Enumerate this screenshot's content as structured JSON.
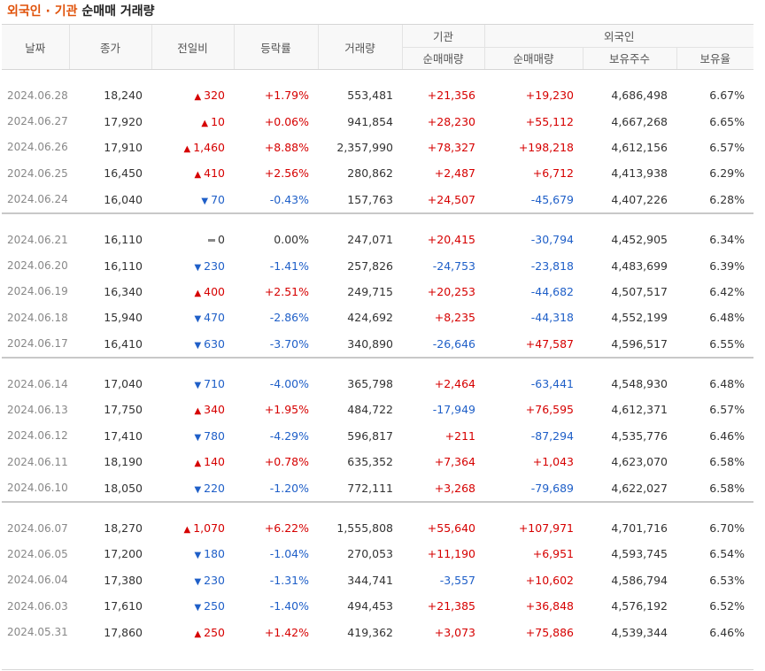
{
  "title": {
    "accent": "외국인 · 기관",
    "rest": " 순매매 거래량"
  },
  "headers": {
    "date": "날짜",
    "close": "종가",
    "change": "전일비",
    "rate": "등락률",
    "volume": "거래량",
    "institution": "기관",
    "foreign": "외국인",
    "inst_net": "순매매량",
    "foreign_net": "순매매량",
    "holdings": "보유주수",
    "ratio": "보유율"
  },
  "colors": {
    "up": "#d60000",
    "down": "#1f5fc8",
    "accent": "#e0520a"
  },
  "groups": [
    [
      {
        "date": "2024.06.28",
        "close": "18,240",
        "dir": "up",
        "change": "320",
        "rate": "+1.79%",
        "volume": "553,481",
        "inst": "+21,356",
        "foreign": "+19,230",
        "holdings": "4,686,498",
        "ratio": "6.67%"
      },
      {
        "date": "2024.06.27",
        "close": "17,920",
        "dir": "up",
        "change": "10",
        "rate": "+0.06%",
        "volume": "941,854",
        "inst": "+28,230",
        "foreign": "+55,112",
        "holdings": "4,667,268",
        "ratio": "6.65%"
      },
      {
        "date": "2024.06.26",
        "close": "17,910",
        "dir": "up",
        "change": "1,460",
        "rate": "+8.88%",
        "volume": "2,357,990",
        "inst": "+78,327",
        "foreign": "+198,218",
        "holdings": "4,612,156",
        "ratio": "6.57%"
      },
      {
        "date": "2024.06.25",
        "close": "16,450",
        "dir": "up",
        "change": "410",
        "rate": "+2.56%",
        "volume": "280,862",
        "inst": "+2,487",
        "foreign": "+6,712",
        "holdings": "4,413,938",
        "ratio": "6.29%"
      },
      {
        "date": "2024.06.24",
        "close": "16,040",
        "dir": "down",
        "change": "70",
        "rate": "-0.43%",
        "volume": "157,763",
        "inst": "+24,507",
        "foreign": "-45,679",
        "holdings": "4,407,226",
        "ratio": "6.28%"
      }
    ],
    [
      {
        "date": "2024.06.21",
        "close": "16,110",
        "dir": "flat",
        "change": "0",
        "rate": "0.00%",
        "volume": "247,071",
        "inst": "+20,415",
        "foreign": "-30,794",
        "holdings": "4,452,905",
        "ratio": "6.34%"
      },
      {
        "date": "2024.06.20",
        "close": "16,110",
        "dir": "down",
        "change": "230",
        "rate": "-1.41%",
        "volume": "257,826",
        "inst": "-24,753",
        "foreign": "-23,818",
        "holdings": "4,483,699",
        "ratio": "6.39%"
      },
      {
        "date": "2024.06.19",
        "close": "16,340",
        "dir": "up",
        "change": "400",
        "rate": "+2.51%",
        "volume": "249,715",
        "inst": "+20,253",
        "foreign": "-44,682",
        "holdings": "4,507,517",
        "ratio": "6.42%"
      },
      {
        "date": "2024.06.18",
        "close": "15,940",
        "dir": "down",
        "change": "470",
        "rate": "-2.86%",
        "volume": "424,692",
        "inst": "+8,235",
        "foreign": "-44,318",
        "holdings": "4,552,199",
        "ratio": "6.48%"
      },
      {
        "date": "2024.06.17",
        "close": "16,410",
        "dir": "down",
        "change": "630",
        "rate": "-3.70%",
        "volume": "340,890",
        "inst": "-26,646",
        "foreign": "+47,587",
        "holdings": "4,596,517",
        "ratio": "6.55%"
      }
    ],
    [
      {
        "date": "2024.06.14",
        "close": "17,040",
        "dir": "down",
        "change": "710",
        "rate": "-4.00%",
        "volume": "365,798",
        "inst": "+2,464",
        "foreign": "-63,441",
        "holdings": "4,548,930",
        "ratio": "6.48%"
      },
      {
        "date": "2024.06.13",
        "close": "17,750",
        "dir": "up",
        "change": "340",
        "rate": "+1.95%",
        "volume": "484,722",
        "inst": "-17,949",
        "foreign": "+76,595",
        "holdings": "4,612,371",
        "ratio": "6.57%"
      },
      {
        "date": "2024.06.12",
        "close": "17,410",
        "dir": "down",
        "change": "780",
        "rate": "-4.29%",
        "volume": "596,817",
        "inst": "+211",
        "foreign": "-87,294",
        "holdings": "4,535,776",
        "ratio": "6.46%"
      },
      {
        "date": "2024.06.11",
        "close": "18,190",
        "dir": "up",
        "change": "140",
        "rate": "+0.78%",
        "volume": "635,352",
        "inst": "+7,364",
        "foreign": "+1,043",
        "holdings": "4,623,070",
        "ratio": "6.58%"
      },
      {
        "date": "2024.06.10",
        "close": "18,050",
        "dir": "down",
        "change": "220",
        "rate": "-1.20%",
        "volume": "772,111",
        "inst": "+3,268",
        "foreign": "-79,689",
        "holdings": "4,622,027",
        "ratio": "6.58%"
      }
    ],
    [
      {
        "date": "2024.06.07",
        "close": "18,270",
        "dir": "up",
        "change": "1,070",
        "rate": "+6.22%",
        "volume": "1,555,808",
        "inst": "+55,640",
        "foreign": "+107,971",
        "holdings": "4,701,716",
        "ratio": "6.70%"
      },
      {
        "date": "2024.06.05",
        "close": "17,200",
        "dir": "down",
        "change": "180",
        "rate": "-1.04%",
        "volume": "270,053",
        "inst": "+11,190",
        "foreign": "+6,951",
        "holdings": "4,593,745",
        "ratio": "6.54%"
      },
      {
        "date": "2024.06.04",
        "close": "17,380",
        "dir": "down",
        "change": "230",
        "rate": "-1.31%",
        "volume": "344,741",
        "inst": "-3,557",
        "foreign": "+10,602",
        "holdings": "4,586,794",
        "ratio": "6.53%"
      },
      {
        "date": "2024.06.03",
        "close": "17,610",
        "dir": "down",
        "change": "250",
        "rate": "-1.40%",
        "volume": "494,453",
        "inst": "+21,385",
        "foreign": "+36,848",
        "holdings": "4,576,192",
        "ratio": "6.52%"
      },
      {
        "date": "2024.05.31",
        "close": "17,860",
        "dir": "up",
        "change": "250",
        "rate": "+1.42%",
        "volume": "419,362",
        "inst": "+3,073",
        "foreign": "+75,886",
        "holdings": "4,539,344",
        "ratio": "6.46%"
      }
    ]
  ]
}
